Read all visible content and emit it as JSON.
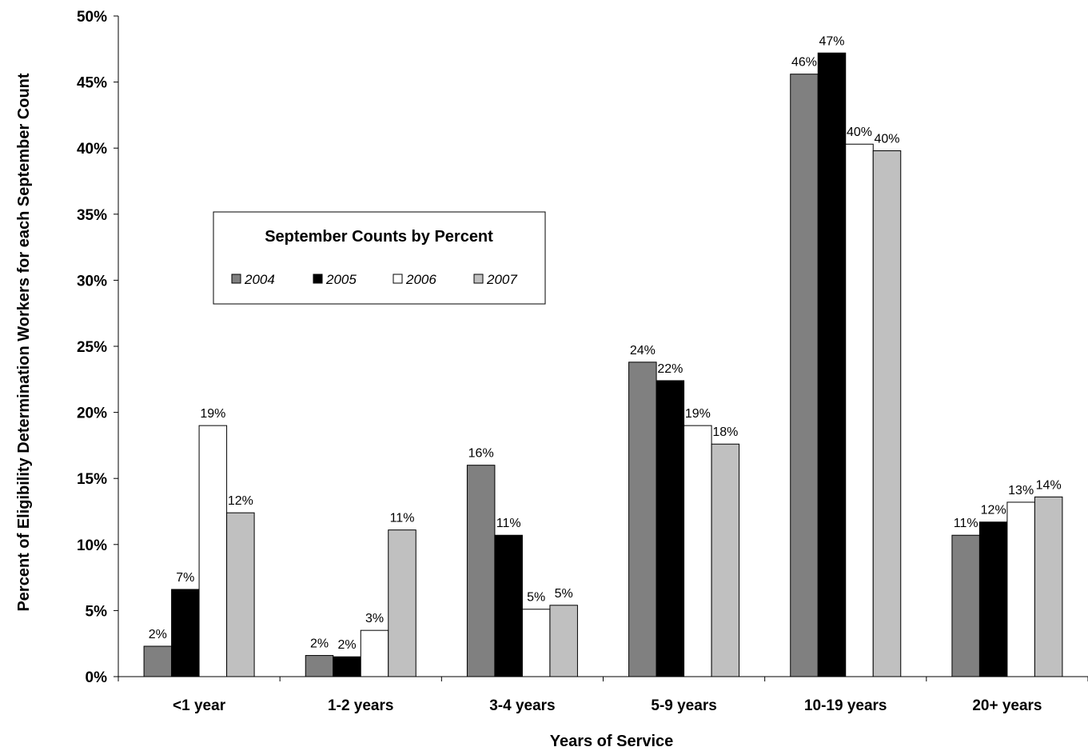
{
  "chart_data": {
    "type": "bar",
    "title": "",
    "xlabel": "Years of Service",
    "ylabel": "Percent of Eligibility Determination Workers for each September Count",
    "ylim": [
      0,
      50
    ],
    "yticks": [
      "0%",
      "5%",
      "10%",
      "15%",
      "20%",
      "25%",
      "30%",
      "35%",
      "40%",
      "45%",
      "50%"
    ],
    "categories": [
      "<1 year",
      "1-2 years",
      "3-4 years",
      "5-9 years",
      "10-19 years",
      "20+ years"
    ],
    "legend": {
      "title": "September Counts by Percent",
      "placement": "center-left"
    },
    "series": [
      {
        "name": "2004",
        "color": "#808080",
        "values": [
          2.3,
          1.6,
          16.0,
          23.8,
          45.6,
          10.7
        ],
        "labels": [
          "2%",
          "2%",
          "16%",
          "24%",
          "46%",
          "11%"
        ]
      },
      {
        "name": "2005",
        "color": "#000000",
        "values": [
          6.6,
          1.5,
          10.7,
          22.4,
          47.2,
          11.7
        ],
        "labels": [
          "7%",
          "2%",
          "11%",
          "22%",
          "47%",
          "12%"
        ]
      },
      {
        "name": "2006",
        "color": "#ffffff",
        "values": [
          19.0,
          3.5,
          5.1,
          19.0,
          40.3,
          13.2
        ],
        "labels": [
          "19%",
          "3%",
          "5%",
          "19%",
          "40%",
          "13%"
        ]
      },
      {
        "name": "2007",
        "color": "#c0c0c0",
        "values": [
          12.4,
          11.1,
          5.4,
          17.6,
          39.8,
          13.6
        ],
        "labels": [
          "12%",
          "11%",
          "5%",
          "18%",
          "40%",
          "14%"
        ]
      }
    ]
  }
}
